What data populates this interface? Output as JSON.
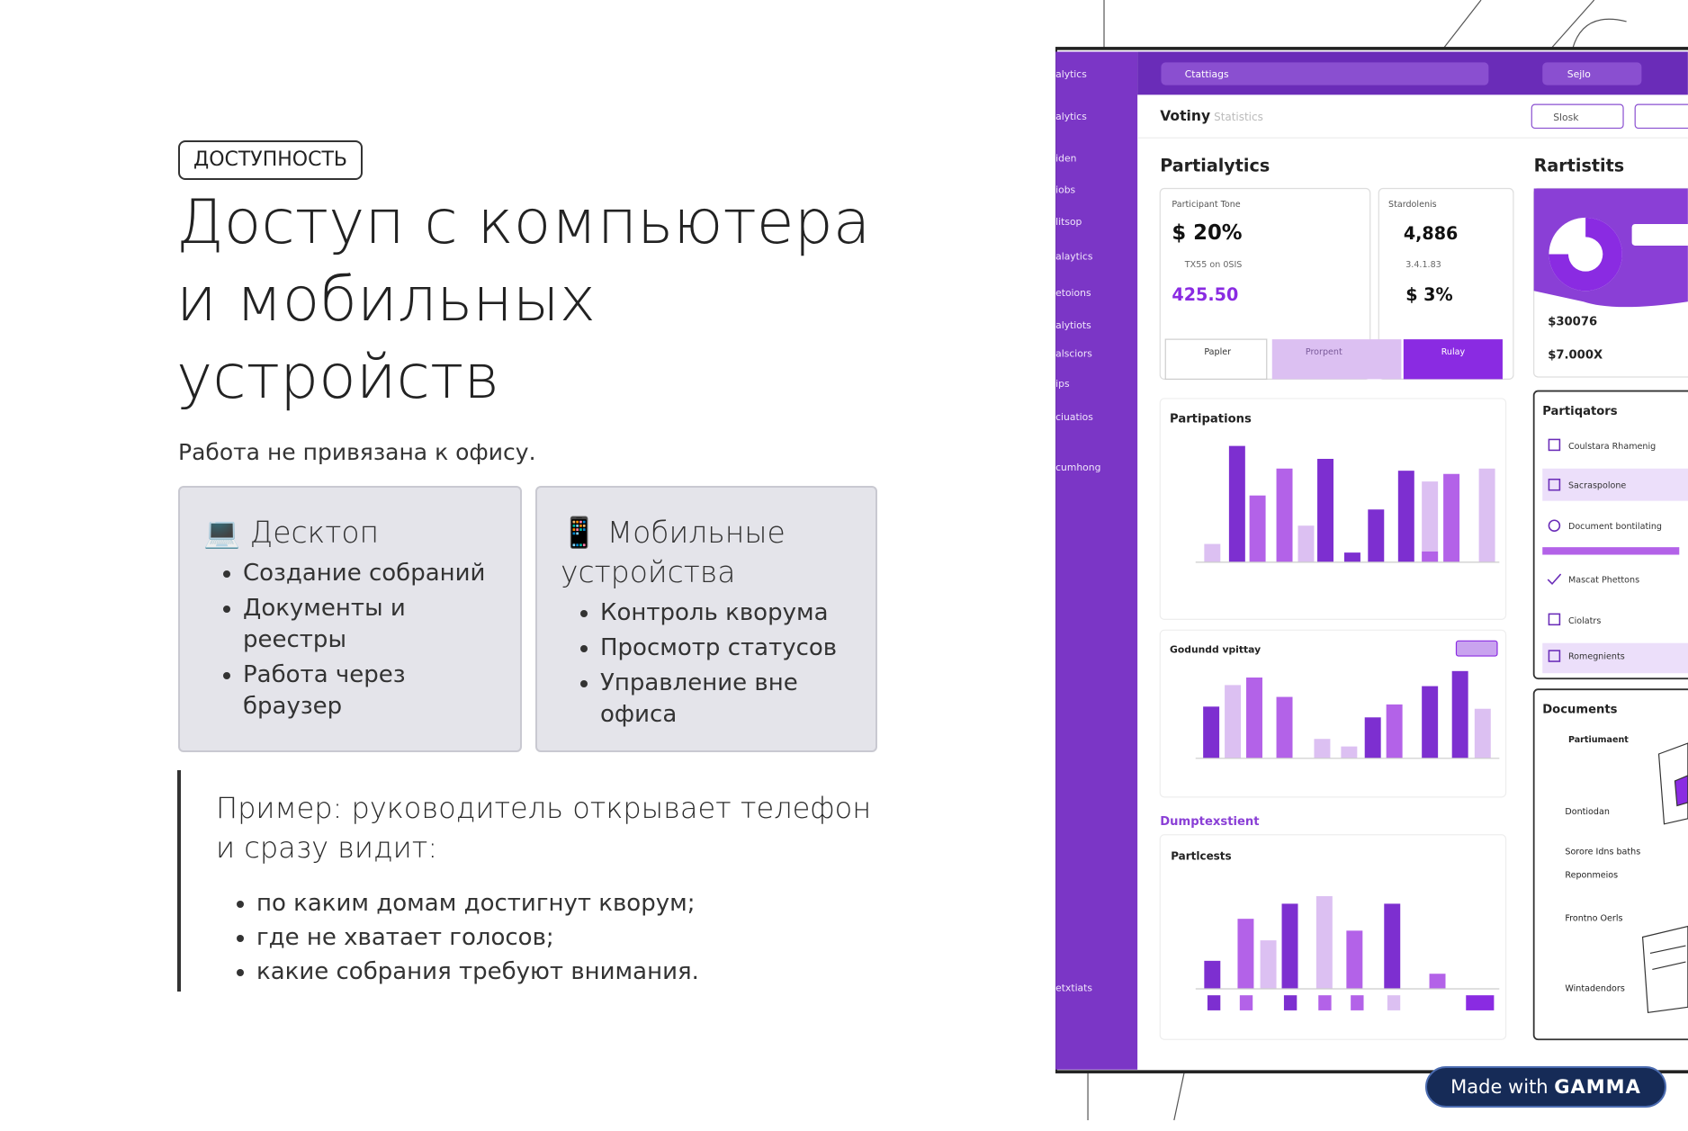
{
  "tag": "ДОСТУПНОСТЬ",
  "title": [
    "Доступ с компьютера",
    "и мобильных",
    "устройств"
  ],
  "subtitle": "Работа не привязана к офису.",
  "cards": [
    {
      "icon": "💻",
      "title": "Десктоп",
      "items": [
        "Создание собраний",
        "Документы и реестры",
        "Работа через браузер"
      ]
    },
    {
      "icon": "📱",
      "title": "Мобильные устройства",
      "items": [
        "Контроль кворума",
        "Просмотр статусов",
        "Управление вне офиса"
      ]
    }
  ],
  "example": {
    "text": "Пример: руководитель открывает телефон и сразу видит:",
    "items": [
      "по каким домам достигнут кворум;",
      "где не хватает голосов;",
      "какие собрания требуют внимания."
    ]
  },
  "illustration": {
    "sidebar": [
      "alytics",
      "alytics",
      "iden",
      "iobs",
      "litsop",
      "alaytics",
      "etoions",
      "alytiots",
      "alsciors",
      "ips",
      "ciuatios",
      "cumhong",
      "etxtiats"
    ],
    "search": "Ctattiags",
    "search_right": "Sejlo",
    "tab": "Votiny",
    "tab_muted": "Statistics",
    "filter": "Slosk",
    "heading_left": "Partialytics",
    "heading_right": "Rartistits",
    "kpi": [
      "$ 20%",
      "4,886",
      "425.50",
      "$ 3%"
    ],
    "kpi_labels": [
      "Participant Tone",
      "Stardolenis",
      "TX55 on 0SIS",
      "3.4.1.83"
    ],
    "segments": [
      "Papler",
      "Prorpent",
      "Rulay"
    ],
    "right_values": [
      "$30076",
      "$7.000X"
    ],
    "chart_titles": [
      "Partipations",
      "Godundd vpittay",
      "Dumptexstient",
      "Partlcests"
    ],
    "panels": [
      "Partiqators",
      "Documents"
    ],
    "panel_items": [
      "Coulstara Rhamenig",
      "Sacraspolone",
      "Document bontilating",
      "Mascat Phettons",
      "Ciolatrs",
      "Romegnients"
    ],
    "doc_items": [
      "Partiumaent",
      "Dontiodan",
      "Sorore Idns baths",
      "Reponmeios",
      "Frontno Oerls",
      "Wintadendors"
    ]
  },
  "badge": {
    "prefix": "Made with",
    "brand": "GAMMA"
  }
}
